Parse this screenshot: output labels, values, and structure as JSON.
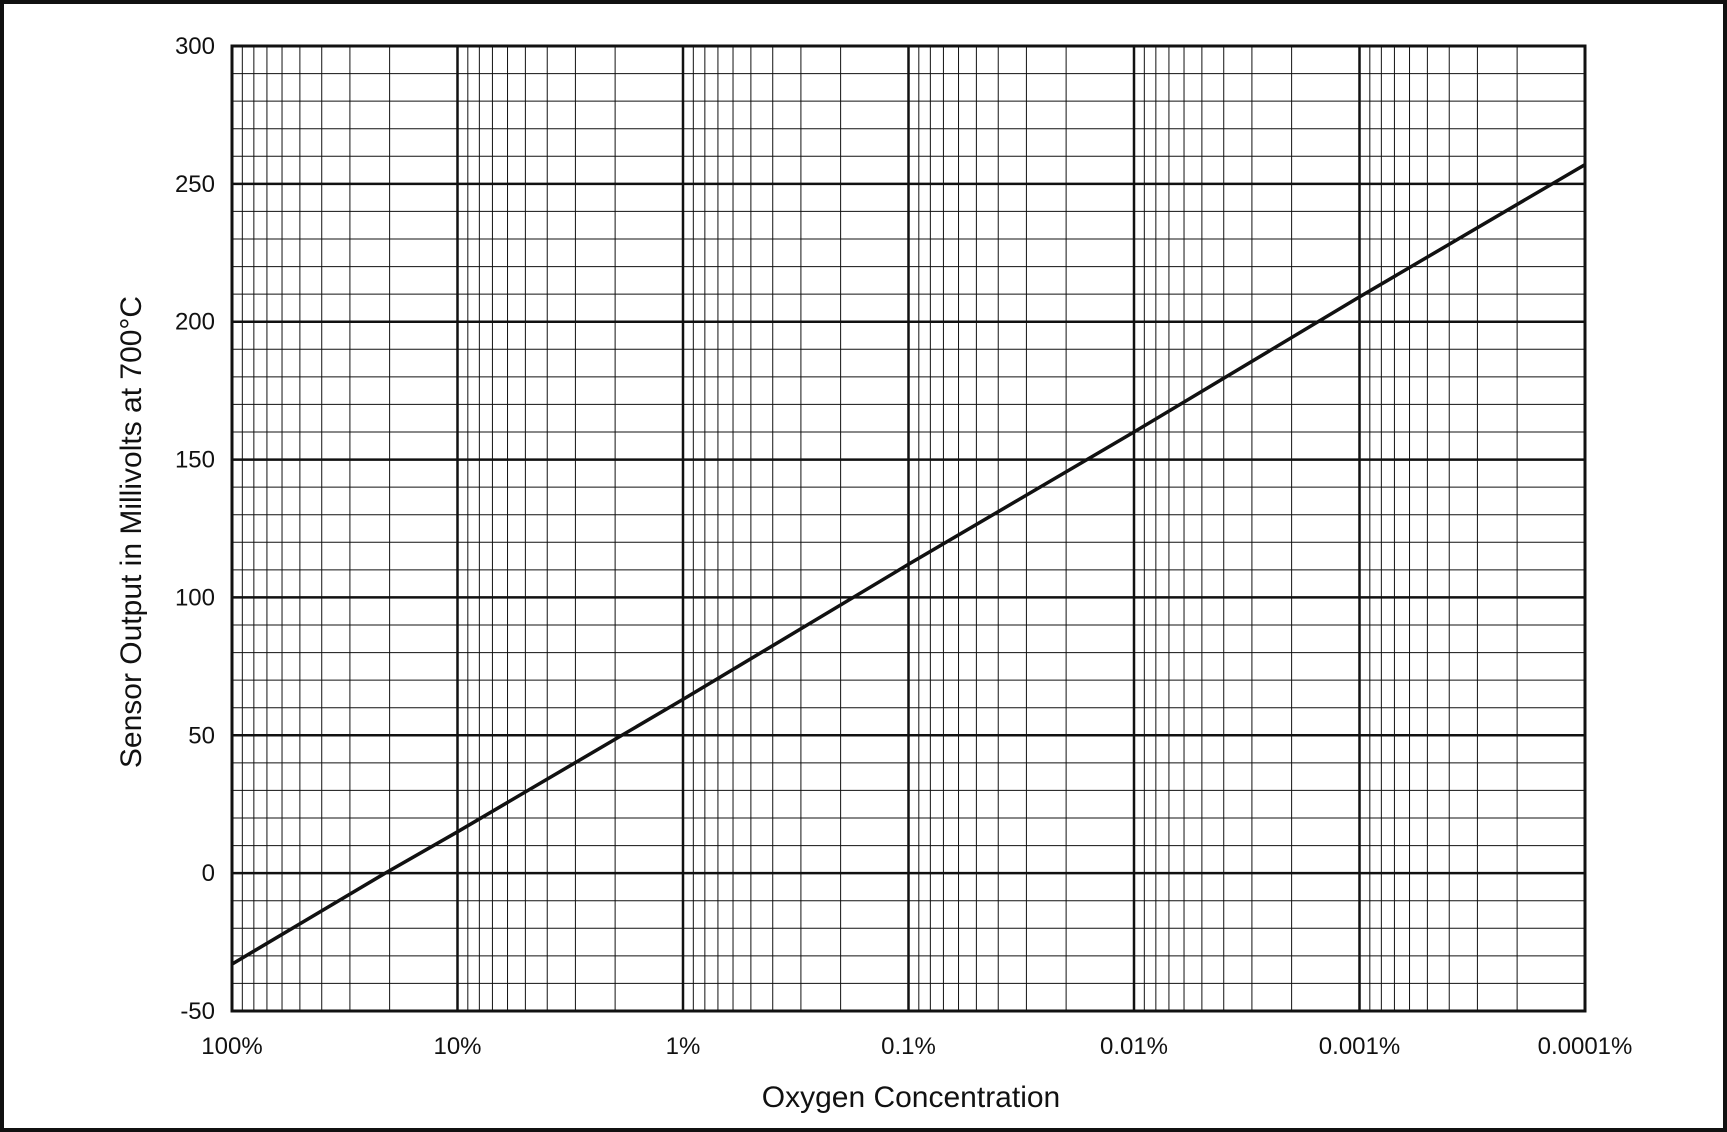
{
  "chart_data": {
    "type": "line",
    "title": "",
    "xlabel": "Oxygen Concentration",
    "ylabel": "Sensor Output in Millivolts at 700°C",
    "x_scale": "log",
    "x_reversed": true,
    "xlim": [
      100,
      0.0001
    ],
    "ylim": [
      -50,
      300
    ],
    "x_ticks": [
      100,
      10,
      1,
      0.1,
      0.01,
      0.001,
      0.0001
    ],
    "x_tick_labels": [
      "100%",
      "10%",
      "1%",
      "0.1%",
      "0.01%",
      "0.001%",
      "0.0001%"
    ],
    "y_ticks": [
      -50,
      0,
      50,
      100,
      150,
      200,
      250,
      300
    ],
    "y_tick_labels": [
      "-50",
      "0",
      "50",
      "100",
      "150",
      "200",
      "250",
      "300"
    ],
    "grid": true,
    "legend": "none",
    "series": [
      {
        "x": [
          100,
          20.9,
          10,
          1,
          0.1,
          0.01,
          0.001,
          0.0001
        ],
        "y": [
          -33,
          0,
          15,
          63,
          112,
          160,
          209,
          257
        ]
      }
    ]
  },
  "colors": {
    "line": "#111111",
    "grid": "#111111",
    "background": "#ffffff",
    "border": "#111111"
  }
}
